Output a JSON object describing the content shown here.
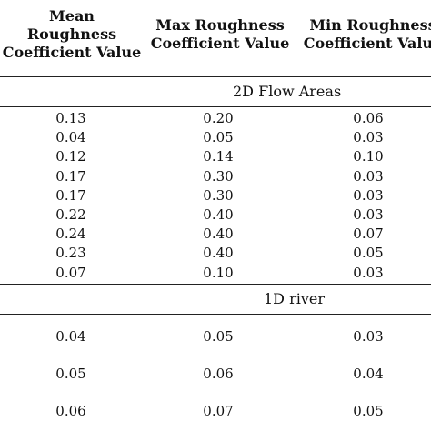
{
  "headers": {
    "col1": [
      "Mean",
      "Roughness",
      "Coefficient Value"
    ],
    "col2": [
      "Max Roughness",
      "Coefficient Value"
    ],
    "col3": [
      "Min Roughness",
      "Coefficient Value"
    ]
  },
  "sections": [
    {
      "title": "2D Flow Areas",
      "rows": [
        [
          "0.13",
          "0.20",
          "0.06"
        ],
        [
          "0.04",
          "0.05",
          "0.03"
        ],
        [
          "0.12",
          "0.14",
          "0.10"
        ],
        [
          "0.17",
          "0.30",
          "0.03"
        ],
        [
          "0.17",
          "0.30",
          "0.03"
        ],
        [
          "0.22",
          "0.40",
          "0.03"
        ],
        [
          "0.24",
          "0.40",
          "0.07"
        ],
        [
          "0.23",
          "0.40",
          "0.05"
        ],
        [
          "0.07",
          "0.10",
          "0.03"
        ]
      ]
    },
    {
      "title": "1D river",
      "rows": [
        [
          "0.04",
          "0.05",
          "0.03"
        ],
        [
          "0.05",
          "0.06",
          "0.04"
        ],
        [
          "0.06",
          "0.07",
          "0.05"
        ]
      ]
    }
  ]
}
